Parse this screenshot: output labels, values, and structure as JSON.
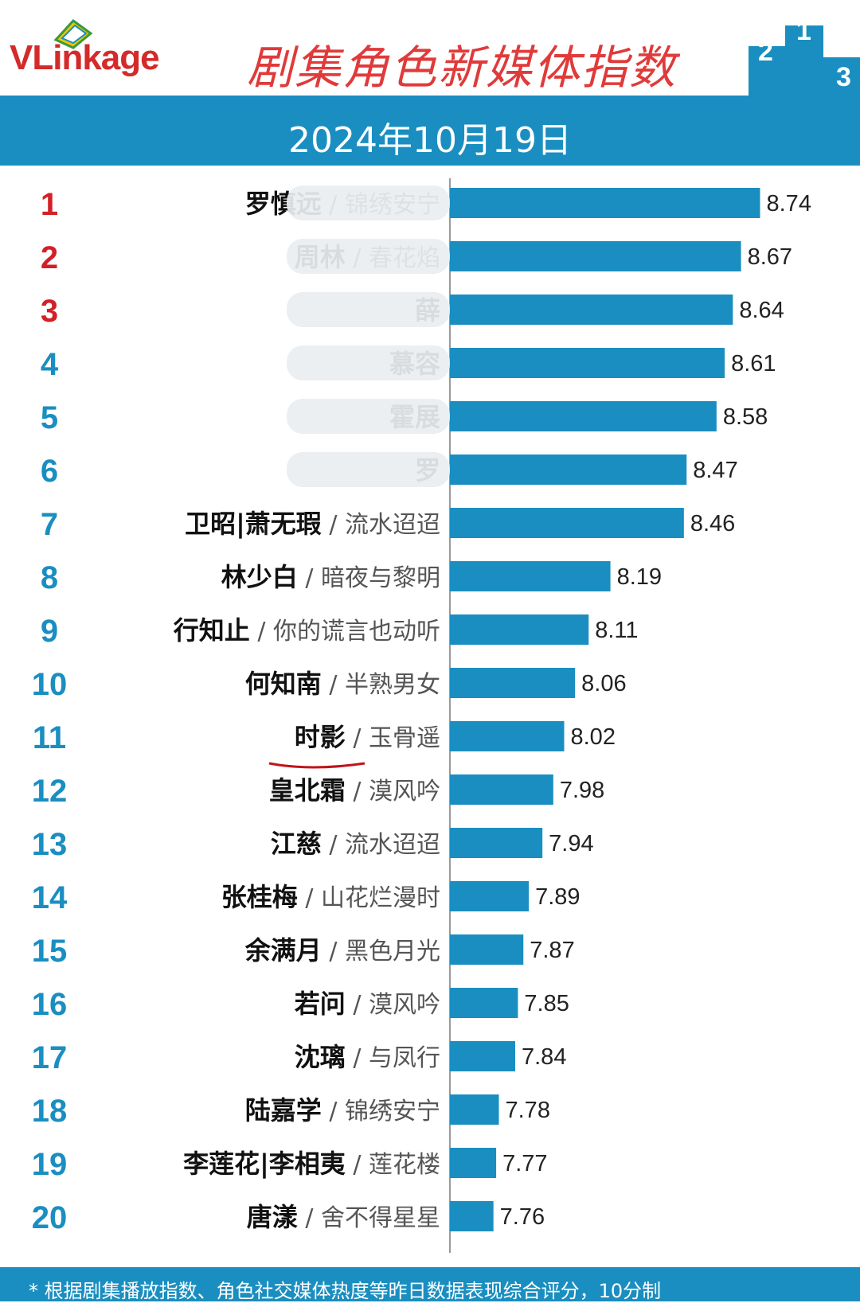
{
  "header": {
    "logo_text_a": "VLink",
    "logo_text_b": "age",
    "title": "剧集角色新媒体指数",
    "podium_digits": [
      "2",
      "1",
      "3"
    ]
  },
  "date": "2024年10月19日",
  "footnote": "* 根据剧集播放指数、角色社交媒体热度等昨日数据表现综合评分，10分制",
  "colors": {
    "bar": "#1a8ec0",
    "top_rank": "#d32027",
    "rank": "#1a8ec0",
    "header_band": "#1a8ec0",
    "title": "#e03a3a"
  },
  "chart_data": {
    "type": "bar",
    "orientation": "horizontal",
    "ranks": [
      "1",
      "2",
      "3",
      "4",
      "5",
      "6",
      "7",
      "8",
      "9",
      "10",
      "11",
      "12",
      "13",
      "14",
      "15",
      "16",
      "17",
      "18",
      "19",
      "20"
    ],
    "names": [
      "罗慎远",
      "周林",
      "薛",
      "慕容",
      "霍展",
      "罗",
      "卫昭|萧无瑕",
      "林少白",
      "行知止",
      "何知南",
      "时影",
      "皇北霜",
      "江慈",
      "张桂梅",
      "余满月",
      "若问",
      "沈璃",
      "陆嘉学",
      "李莲花|李相夷",
      "唐漾"
    ],
    "dramas": [
      "锦绣安宁",
      "春花焰",
      "",
      "",
      "",
      "",
      "流水迢迢",
      "暗夜与黎明",
      "你的谎言也动听",
      "半熟男女",
      "玉骨遥",
      "漠风吟",
      "流水迢迢",
      "山花烂漫时",
      "黑色月光",
      "漠风吟",
      "与凤行",
      "锦绣安宁",
      "莲花楼",
      "舍不得星星"
    ],
    "values": [
      8.74,
      8.67,
      8.64,
      8.61,
      8.58,
      8.47,
      8.46,
      8.19,
      8.11,
      8.06,
      8.02,
      7.98,
      7.94,
      7.89,
      7.87,
      7.85,
      7.84,
      7.78,
      7.77,
      7.76
    ],
    "value_labels": [
      "8.74",
      "8.67",
      "8.64",
      "8.61",
      "8.58",
      "8.47",
      "8.46",
      "8.19",
      "8.11",
      "8.06",
      "8.02",
      "7.98",
      "7.94",
      "7.89",
      "7.87",
      "7.85",
      "7.84",
      "7.78",
      "7.77",
      "7.76"
    ],
    "blurred_rows": [
      1,
      2,
      3,
      4,
      5,
      6
    ],
    "highlighted_row": 11,
    "xlim": [
      7.6,
      8.8
    ]
  }
}
